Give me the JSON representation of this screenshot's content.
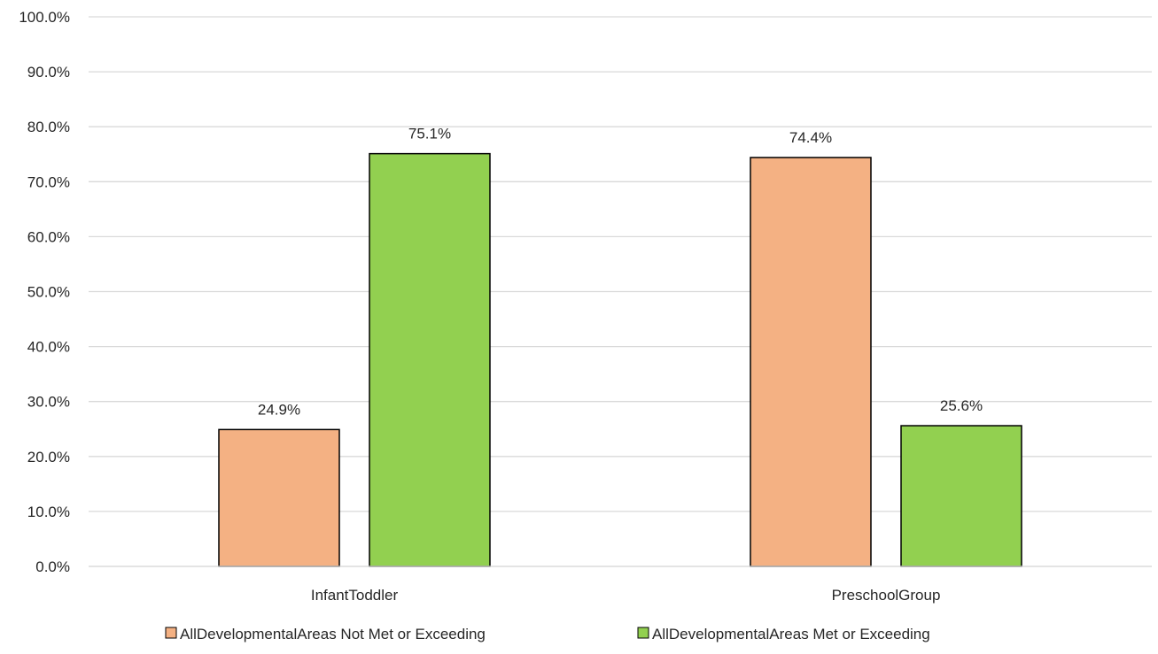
{
  "chart_data": {
    "type": "bar",
    "categories": [
      "InfantToddler",
      "PreschoolGroup"
    ],
    "series": [
      {
        "name": "AllDevelopmentalAreas Not Met or Exceeding",
        "values": [
          24.9,
          74.4
        ],
        "color": "#F4B183"
      },
      {
        "name": "AllDevelopmentalAreas Met or Exceeding",
        "values": [
          75.1,
          25.6
        ],
        "color": "#92D050"
      }
    ],
    "y_ticks": [
      "0.0%",
      "10.0%",
      "20.0%",
      "30.0%",
      "40.0%",
      "50.0%",
      "60.0%",
      "70.0%",
      "80.0%",
      "90.0%",
      "100.0%"
    ],
    "data_labels": [
      [
        "24.9%",
        "74.4%"
      ],
      [
        "75.1%",
        "25.6%"
      ]
    ],
    "ylim": [
      0,
      100
    ],
    "grid": true,
    "legend_position": "bottom",
    "title": "",
    "xlabel": "",
    "ylabel": ""
  }
}
